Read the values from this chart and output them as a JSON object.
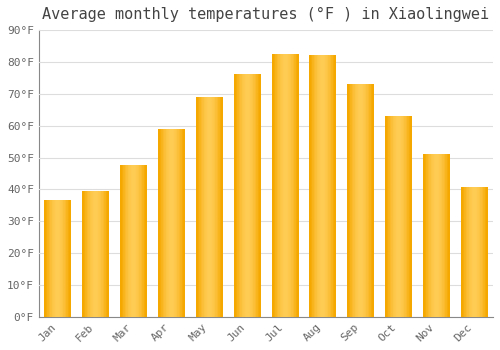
{
  "title": "Average monthly temperatures (°F ) in Xiaolingwei",
  "months": [
    "Jan",
    "Feb",
    "Mar",
    "Apr",
    "May",
    "Jun",
    "Jul",
    "Aug",
    "Sep",
    "Oct",
    "Nov",
    "Dec"
  ],
  "values": [
    36.5,
    39.5,
    47.5,
    59,
    69,
    76,
    82.5,
    82,
    73,
    63,
    51,
    40.5
  ],
  "ylim": [
    0,
    90
  ],
  "yticks": [
    0,
    10,
    20,
    30,
    40,
    50,
    60,
    70,
    80,
    90
  ],
  "ytick_labels": [
    "0°F",
    "10°F",
    "20°F",
    "30°F",
    "40°F",
    "50°F",
    "60°F",
    "70°F",
    "80°F",
    "90°F"
  ],
  "background_color": "#FFFFFF",
  "grid_color": "#DDDDDD",
  "title_fontsize": 11,
  "tick_fontsize": 8,
  "bar_color_left": "#F5A800",
  "bar_color_center": "#FFCC55",
  "bar_color_right": "#F5A800",
  "bar_width": 0.7
}
